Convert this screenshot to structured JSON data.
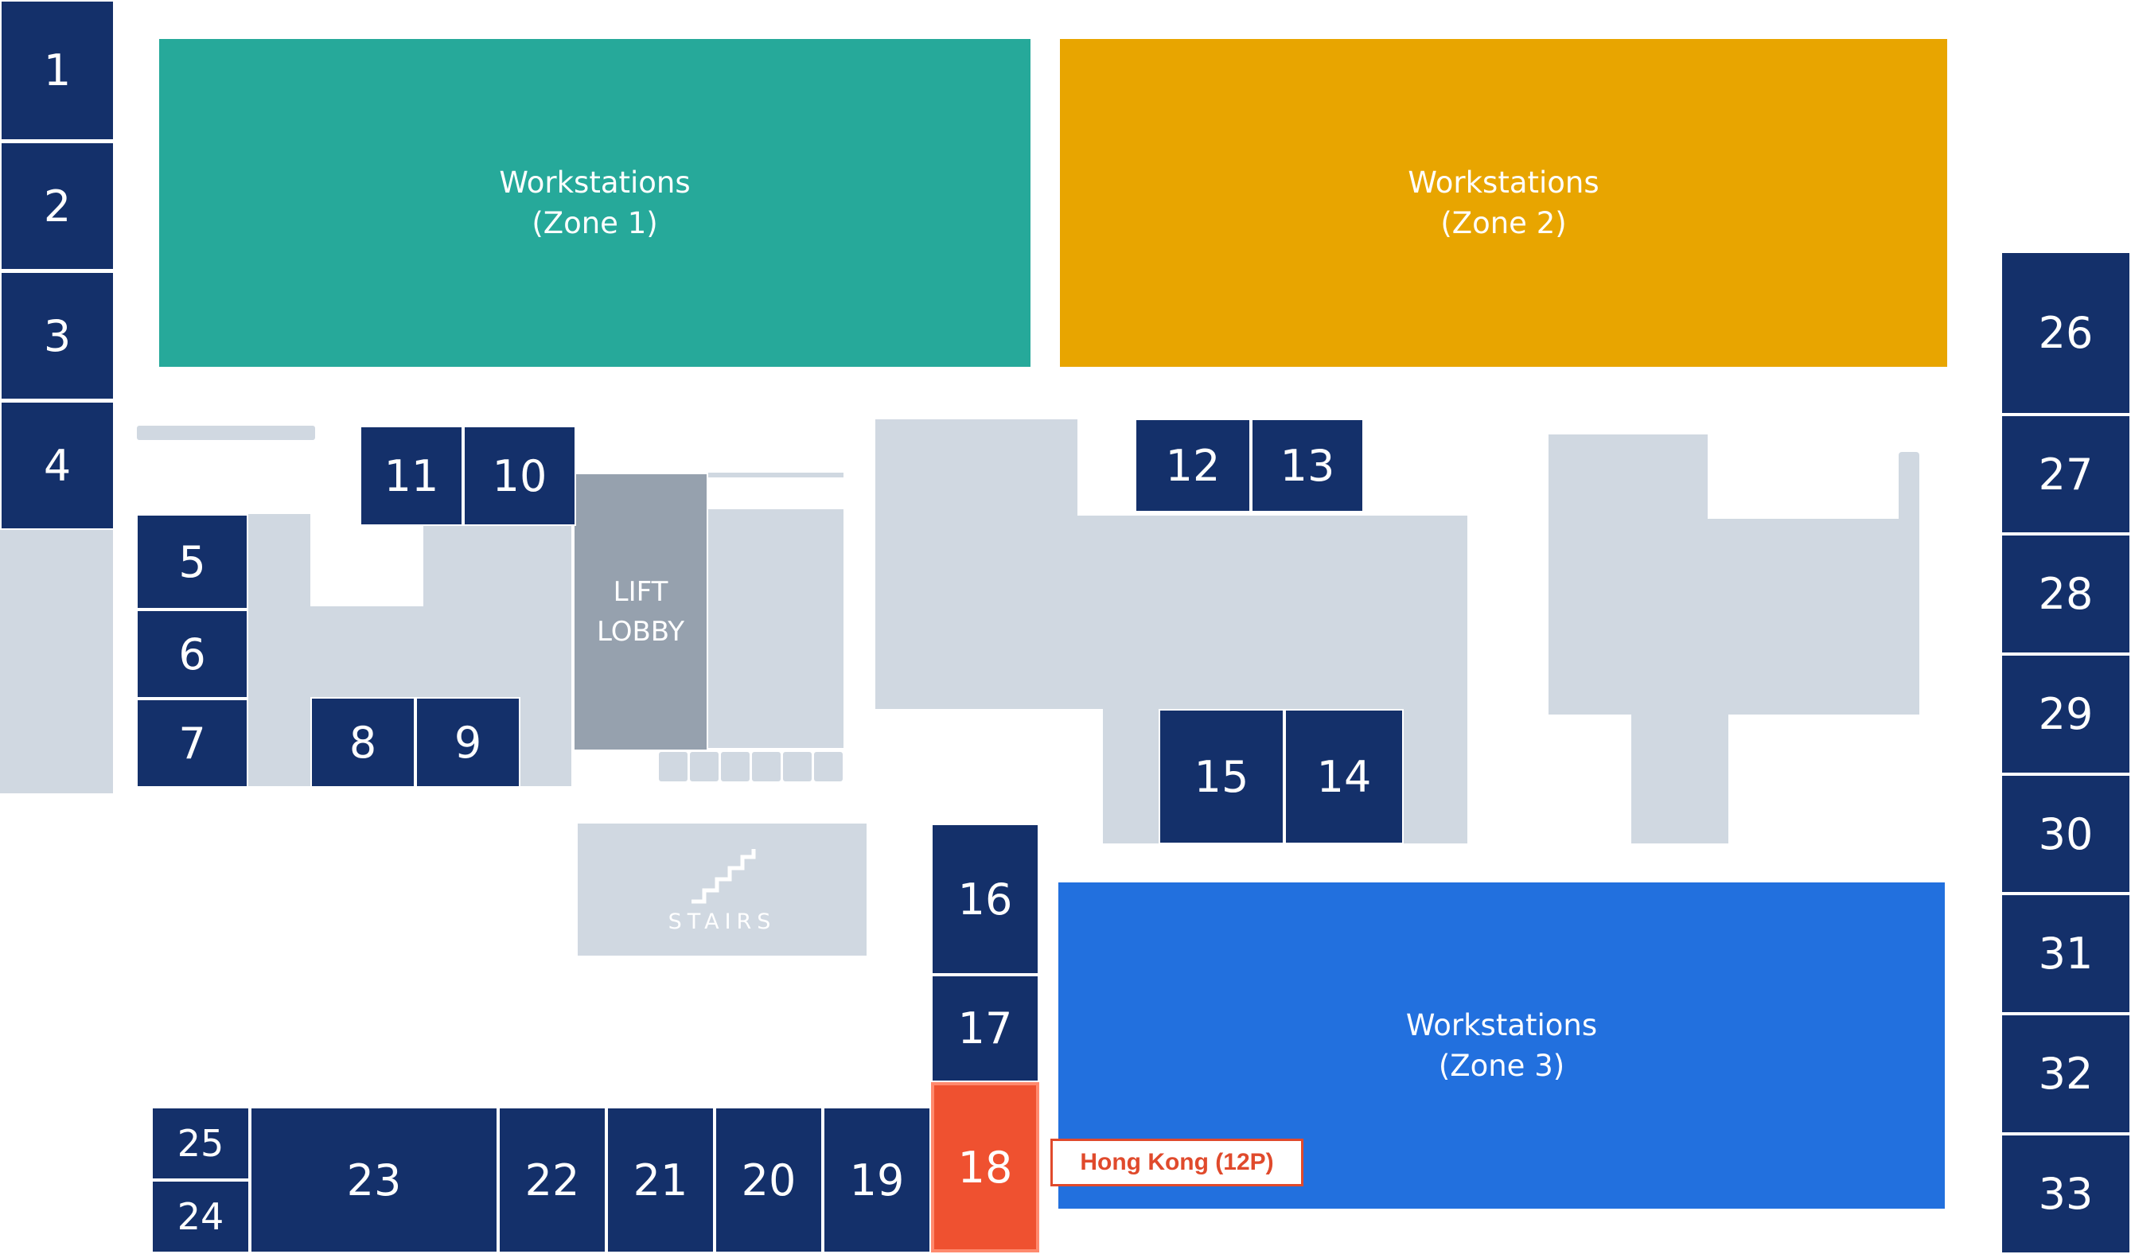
{
  "rooms": {
    "r1": "1",
    "r2": "2",
    "r3": "3",
    "r4": "4",
    "r5": "5",
    "r6": "6",
    "r7": "7",
    "r8": "8",
    "r9": "9",
    "r10": "10",
    "r11": "11",
    "r12": "12",
    "r13": "13",
    "r14": "14",
    "r15": "15",
    "r16": "16",
    "r17": "17",
    "r18": "18",
    "r19": "19",
    "r20": "20",
    "r21": "21",
    "r22": "22",
    "r23": "23",
    "r24": "24",
    "r25": "25",
    "r26": "26",
    "r27": "27",
    "r28": "28",
    "r29": "29",
    "r30": "30",
    "r31": "31",
    "r32": "32",
    "r33": "33"
  },
  "zones": {
    "zone1": {
      "line1": "Workstations",
      "line2": "(Zone 1)",
      "color": "#26a99a"
    },
    "zone2": {
      "line1": "Workstations",
      "line2": "(Zone 2)",
      "color": "#e8a500"
    },
    "zone3": {
      "line1": "Workstations",
      "line2": "(Zone 3)",
      "color": "#2270de"
    }
  },
  "lift_lobby": {
    "line1": "LIFT",
    "line2": "LOBBY"
  },
  "stairs": {
    "label": "STAIRS",
    "icon": "stairs-icon"
  },
  "selected_room": {
    "number": "18",
    "tooltip": "Hong Kong (12P)",
    "color": "#ef5130"
  },
  "colors": {
    "room": "#14306a",
    "corridor": "#d0d8e1",
    "lift": "#96a1ae"
  }
}
